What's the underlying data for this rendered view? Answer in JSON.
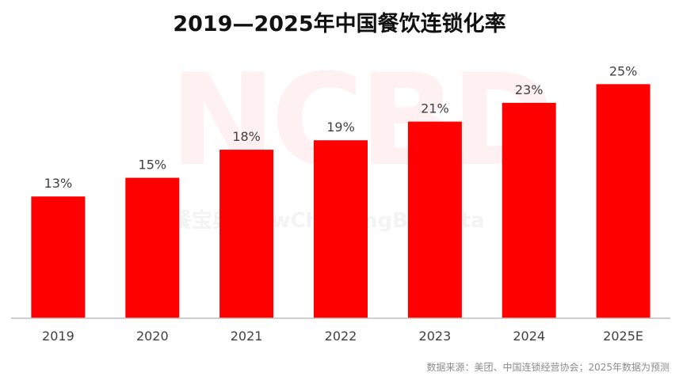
{
  "chart_data": {
    "type": "bar",
    "title": "2019—2025年中国餐饮连锁化率",
    "categories": [
      "2019",
      "2020",
      "2021",
      "2022",
      "2023",
      "2024",
      "2025E"
    ],
    "values": [
      13,
      15,
      18,
      19,
      21,
      23,
      25
    ],
    "data_labels": [
      "13%",
      "15%",
      "18%",
      "19%",
      "21%",
      "23%",
      "25%"
    ],
    "unit": "%",
    "ylim": [
      0,
      30
    ],
    "grid": false,
    "xlabel": "",
    "ylabel": "",
    "bar_color": "#ff0000",
    "axis_color": "#bfbfbf"
  },
  "watermark": {
    "logo_text": "NCBD",
    "tagline": "餐宝典 NewChainingBigData"
  },
  "source_note": "数据来源：美团、中国连锁经营协会；2025年数据为预测"
}
